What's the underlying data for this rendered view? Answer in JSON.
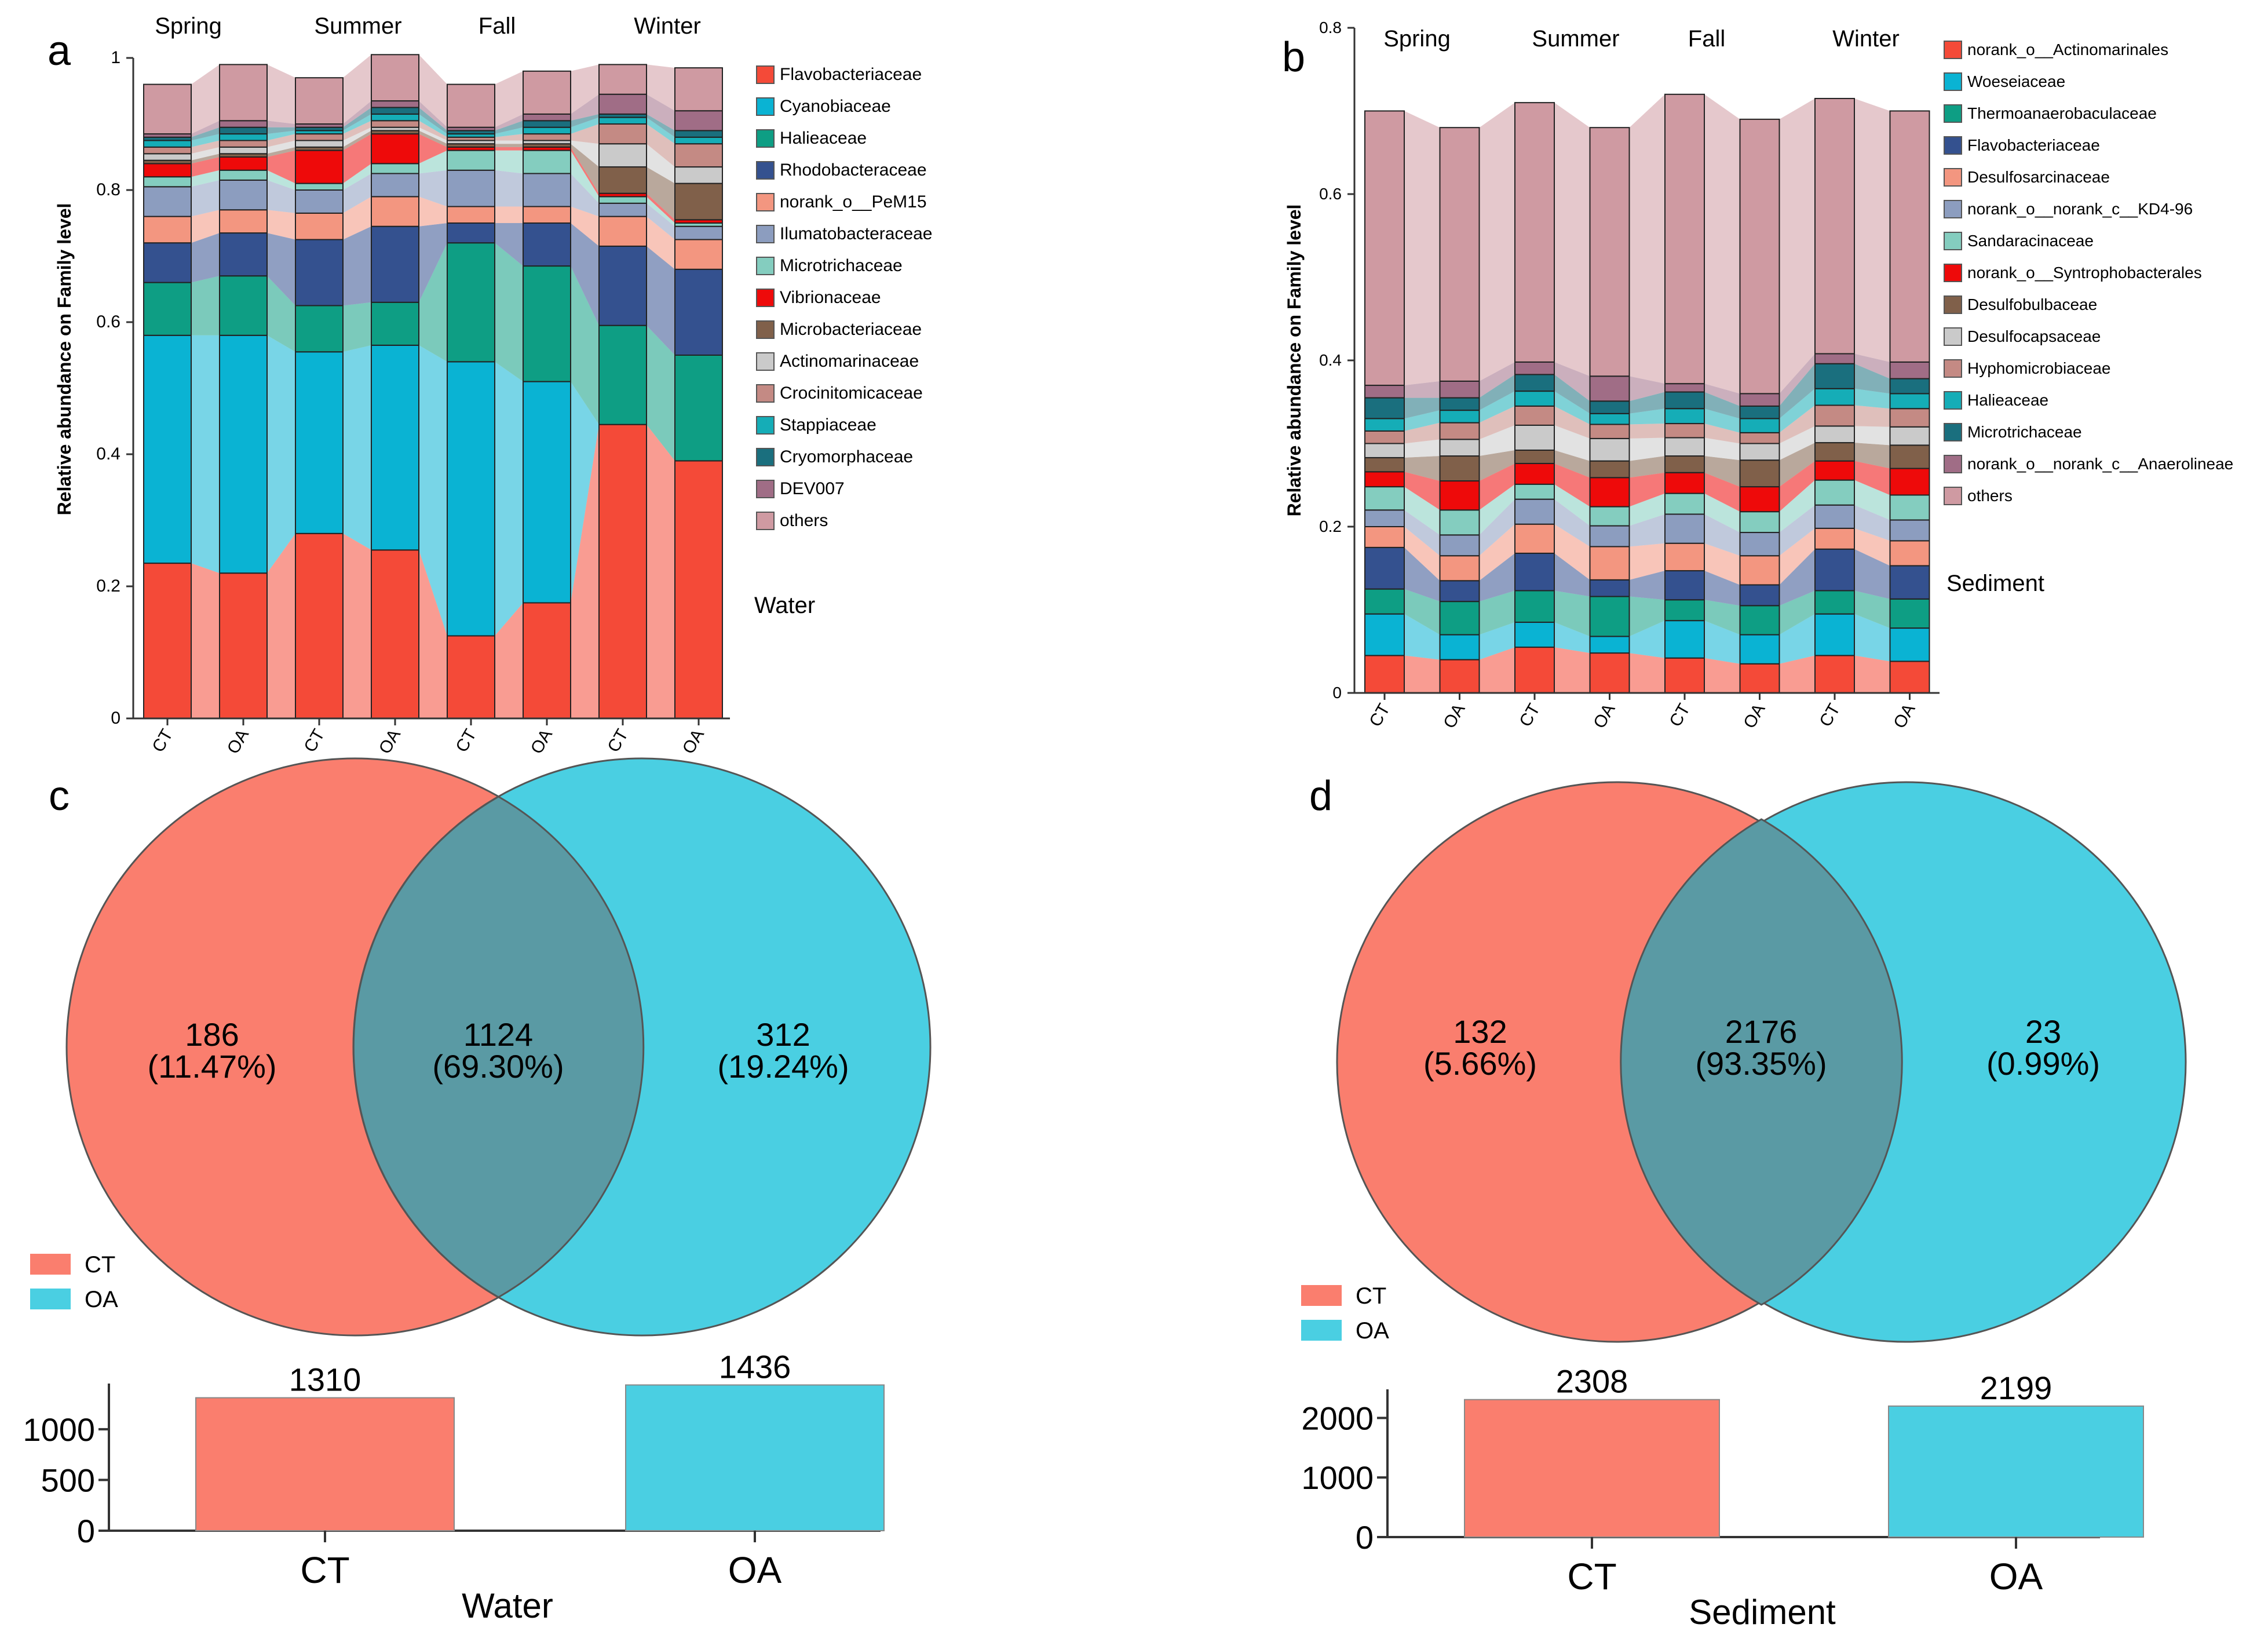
{
  "panel_letters": {
    "a": "a",
    "b": "b",
    "c": "c",
    "d": "d"
  },
  "chart_data": [
    {
      "id": "a",
      "type": "stacked-bar",
      "title": "",
      "ylabel": "Relative abundance on Family level",
      "ylim": [
        0,
        1
      ],
      "yticks": [
        "0",
        "0.2",
        "0.4",
        "0.6",
        "0.8",
        "1"
      ],
      "categories": [
        "CT",
        "OA",
        "CT",
        "OA",
        "CT",
        "OA",
        "CT",
        "OA"
      ],
      "seasons": [
        "Spring",
        "Summer",
        "Fall",
        "Winter"
      ],
      "group_label": "Water",
      "series": [
        {
          "name": "Flavobacteriaceae",
          "color": "#f44a38",
          "values": [
            0.235,
            0.22,
            0.28,
            0.255,
            0.125,
            0.175,
            0.445,
            0.39
          ]
        },
        {
          "name": "Cyanobiaceae",
          "color": "#0ab3d3",
          "values": [
            0.345,
            0.36,
            0.275,
            0.31,
            0.415,
            0.335,
            0.0,
            0.0
          ]
        },
        {
          "name": "Halieaceae",
          "color": "#0e9e84",
          "values": [
            0.08,
            0.09,
            0.07,
            0.065,
            0.18,
            0.175,
            0.15,
            0.16
          ]
        },
        {
          "name": "Rhodobacteraceae",
          "color": "#34518f",
          "values": [
            0.06,
            0.065,
            0.1,
            0.115,
            0.03,
            0.065,
            0.12,
            0.13
          ]
        },
        {
          "name": "norank_o__PeM15",
          "color": "#f39680",
          "values": [
            0.04,
            0.035,
            0.04,
            0.045,
            0.025,
            0.025,
            0.045,
            0.045
          ]
        },
        {
          "name": "Ilumatobacteraceae",
          "color": "#8c9dbf",
          "values": [
            0.045,
            0.045,
            0.035,
            0.035,
            0.055,
            0.05,
            0.02,
            0.02
          ]
        },
        {
          "name": "Microtrichaceae",
          "color": "#84cdbf",
          "values": [
            0.015,
            0.015,
            0.01,
            0.015,
            0.03,
            0.035,
            0.01,
            0.005
          ]
        },
        {
          "name": "Vibrionaceae",
          "color": "#ee0a0a",
          "values": [
            0.02,
            0.02,
            0.05,
            0.045,
            0.005,
            0.005,
            0.005,
            0.005
          ]
        },
        {
          "name": "Microbacteriaceae",
          "color": "#80604a",
          "values": [
            0.005,
            0.005,
            0.005,
            0.005,
            0.005,
            0.005,
            0.04,
            0.055
          ]
        },
        {
          "name": "Actinomarinaceae",
          "color": "#cacaca",
          "values": [
            0.01,
            0.01,
            0.01,
            0.005,
            0.005,
            0.005,
            0.035,
            0.025
          ]
        },
        {
          "name": "Crocinitomicaceae",
          "color": "#c48a84",
          "values": [
            0.01,
            0.01,
            0.01,
            0.01,
            0.005,
            0.01,
            0.03,
            0.035
          ]
        },
        {
          "name": "Stappiaceae",
          "color": "#15adb7",
          "values": [
            0.01,
            0.01,
            0.005,
            0.01,
            0.005,
            0.01,
            0.01,
            0.01
          ]
        },
        {
          "name": "Cryomorphaceae",
          "color": "#1a6f7e",
          "values": [
            0.005,
            0.01,
            0.005,
            0.01,
            0.005,
            0.01,
            0.005,
            0.01
          ]
        },
        {
          "name": "DEV007",
          "color": "#a06d86",
          "values": [
            0.005,
            0.01,
            0.005,
            0.01,
            0.005,
            0.01,
            0.03,
            0.03
          ]
        },
        {
          "name": "others",
          "color": "#cf9aa2",
          "values": [
            0.075,
            0.085,
            0.07,
            0.07,
            0.065,
            0.065,
            0.045,
            0.065
          ]
        }
      ]
    },
    {
      "id": "b",
      "type": "stacked-bar",
      "title": "",
      "ylabel": "Relative abundance on Family level",
      "ylim": [
        0,
        0.8
      ],
      "yticks": [
        "0",
        "0.2",
        "0.4",
        "0.6",
        "0.8"
      ],
      "categories": [
        "CT",
        "OA",
        "CT",
        "OA",
        "CT",
        "OA",
        "CT",
        "OA"
      ],
      "seasons": [
        "Spring",
        "Summer",
        "Fall",
        "Winter"
      ],
      "group_label": "Sediment",
      "series": [
        {
          "name": "norank_o__Actinomarinales",
          "color": "#f44a38",
          "values": [
            0.045,
            0.04,
            0.055,
            0.048,
            0.042,
            0.035,
            0.045,
            0.038
          ]
        },
        {
          "name": "Woeseiaceae",
          "color": "#0ab3d3",
          "values": [
            0.05,
            0.03,
            0.03,
            0.02,
            0.045,
            0.035,
            0.05,
            0.04
          ]
        },
        {
          "name": "Thermoanaerobaculaceae",
          "color": "#0e9e84",
          "values": [
            0.03,
            0.04,
            0.038,
            0.048,
            0.025,
            0.035,
            0.028,
            0.035
          ]
        },
        {
          "name": "Flavobacteriaceae",
          "color": "#34518f",
          "values": [
            0.05,
            0.025,
            0.045,
            0.02,
            0.035,
            0.025,
            0.05,
            0.04
          ]
        },
        {
          "name": "Desulfosarcinaceae",
          "color": "#f39680",
          "values": [
            0.025,
            0.03,
            0.035,
            0.04,
            0.033,
            0.035,
            0.025,
            0.03
          ]
        },
        {
          "name": "norank_o__norank_c__KD4-96",
          "color": "#8c9dbf",
          "values": [
            0.02,
            0.025,
            0.03,
            0.025,
            0.035,
            0.028,
            0.028,
            0.025
          ]
        },
        {
          "name": "Sandaracinaceae",
          "color": "#84cdbf",
          "values": [
            0.028,
            0.03,
            0.018,
            0.023,
            0.025,
            0.025,
            0.03,
            0.03
          ]
        },
        {
          "name": "norank_o__Syntrophobacterales",
          "color": "#ee0a0a",
          "values": [
            0.018,
            0.035,
            0.025,
            0.035,
            0.025,
            0.03,
            0.023,
            0.032
          ]
        },
        {
          "name": "Desulfobulbaceae",
          "color": "#80604a",
          "values": [
            0.017,
            0.03,
            0.016,
            0.02,
            0.02,
            0.032,
            0.022,
            0.028
          ]
        },
        {
          "name": "Desulfocapsaceae",
          "color": "#cacaca",
          "values": [
            0.017,
            0.02,
            0.03,
            0.027,
            0.022,
            0.02,
            0.02,
            0.022
          ]
        },
        {
          "name": "Hyphomicrobiaceae",
          "color": "#c48a84",
          "values": [
            0.015,
            0.02,
            0.023,
            0.017,
            0.017,
            0.013,
            0.025,
            0.022
          ]
        },
        {
          "name": "Halieaceae",
          "color": "#15adb7",
          "values": [
            0.015,
            0.015,
            0.018,
            0.013,
            0.018,
            0.017,
            0.02,
            0.018
          ]
        },
        {
          "name": "Microtrichaceae",
          "color": "#1a6f7e",
          "values": [
            0.025,
            0.015,
            0.02,
            0.015,
            0.02,
            0.015,
            0.03,
            0.018
          ]
        },
        {
          "name": "norank_o__norank_c__Anaerolineae",
          "color": "#a06d86",
          "values": [
            0.015,
            0.02,
            0.015,
            0.03,
            0.01,
            0.015,
            0.012,
            0.02
          ]
        },
        {
          "name": "others",
          "color": "#cf9aa2",
          "values": [
            0.33,
            0.305,
            0.312,
            0.299,
            0.348,
            0.33,
            0.307,
            0.302
          ]
        }
      ]
    },
    {
      "id": "c",
      "type": "venn",
      "group_label": "Water",
      "legend": [
        {
          "label": "CT",
          "color": "#fa7e6e"
        },
        {
          "label": "OA",
          "color": "#4acfe2"
        }
      ],
      "regions": {
        "left": {
          "count": "186",
          "pct": "(11.47%)"
        },
        "overlap": {
          "count": "1124",
          "pct": "(69.30%)"
        },
        "right": {
          "count": "312",
          "pct": "(19.24%)"
        }
      },
      "bars": {
        "categories": [
          "CT",
          "OA"
        ],
        "values": [
          1310,
          1436
        ],
        "labels": [
          "1310",
          "1436"
        ],
        "ylim": [
          0,
          1450
        ],
        "yticks": [
          {
            "v": 0,
            "label": "0"
          },
          {
            "v": 500,
            "label": "500"
          },
          {
            "v": 1000,
            "label": "1000"
          }
        ],
        "xlabel": "Water"
      }
    },
    {
      "id": "d",
      "type": "venn",
      "group_label": "Sediment",
      "legend": [
        {
          "label": "CT",
          "color": "#fa7e6e"
        },
        {
          "label": "OA",
          "color": "#4acfe2"
        }
      ],
      "regions": {
        "left": {
          "count": "132",
          "pct": "(5.66%)"
        },
        "overlap": {
          "count": "2176",
          "pct": "(93.35%)"
        },
        "right": {
          "count": "23",
          "pct": "(0.99%)"
        }
      },
      "bars": {
        "categories": [
          "CT",
          "OA"
        ],
        "values": [
          2308,
          2199
        ],
        "labels": [
          "2308",
          "2199"
        ],
        "ylim": [
          0,
          2480
        ],
        "yticks": [
          {
            "v": 0,
            "label": "0"
          },
          {
            "v": 1000,
            "label": "1000"
          },
          {
            "v": 2000,
            "label": "2000"
          }
        ],
        "xlabel": "Sediment"
      }
    }
  ]
}
